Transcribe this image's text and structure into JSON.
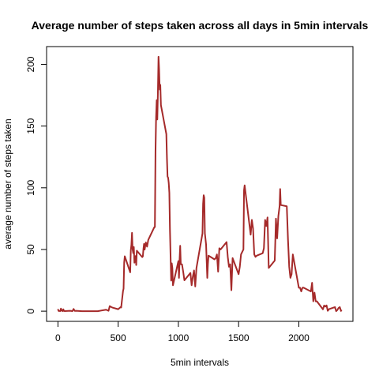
{
  "chart_data": {
    "type": "line",
    "title": "Average number of steps taken across all days in 5min intervals",
    "xlabel": "5min intervals",
    "ylabel": "average number of steps taken",
    "color": "#a52a2a",
    "x": [
      0,
      5,
      10,
      15,
      20,
      25,
      30,
      35,
      40,
      45,
      50,
      55,
      100,
      110,
      120,
      130,
      140,
      150,
      200,
      230,
      300,
      330,
      400,
      420,
      430,
      440,
      450,
      500,
      520,
      525,
      540,
      545,
      550,
      555,
      600,
      605,
      610,
      615,
      620,
      625,
      630,
      635,
      640,
      645,
      650,
      655,
      700,
      705,
      710,
      715,
      720,
      730,
      740,
      750,
      800,
      805,
      810,
      815,
      820,
      825,
      830,
      835,
      840,
      845,
      850,
      855,
      900,
      905,
      910,
      915,
      920,
      925,
      930,
      935,
      940,
      945,
      950,
      955,
      1000,
      1005,
      1010,
      1015,
      1020,
      1030,
      1040,
      1050,
      1100,
      1110,
      1120,
      1130,
      1140,
      1150,
      1200,
      1205,
      1210,
      1215,
      1220,
      1230,
      1240,
      1245,
      1250,
      1300,
      1310,
      1320,
      1330,
      1340,
      1350,
      1400,
      1410,
      1420,
      1430,
      1440,
      1450,
      1500,
      1510,
      1520,
      1530,
      1540,
      1545,
      1550,
      1600,
      1610,
      1620,
      1630,
      1640,
      1650,
      1700,
      1710,
      1720,
      1730,
      1740,
      1745,
      1750,
      1800,
      1810,
      1820,
      1830,
      1840,
      1845,
      1850,
      1900,
      1910,
      1920,
      1930,
      1940,
      1950,
      2000,
      2010,
      2020,
      2030,
      2040,
      2100,
      2110,
      2120,
      2130,
      2140,
      2150,
      2200,
      2210,
      2220,
      2230,
      2240,
      2250,
      2300,
      2310,
      2320,
      2330,
      2340,
      2350,
      2355
    ],
    "values": [
      1.7,
      0.3,
      0.1,
      0.2,
      0.1,
      2.1,
      0.5,
      0.9,
      0,
      1.5,
      0.3,
      0.1,
      0.3,
      0.2,
      0,
      1.8,
      0.2,
      0.3,
      0,
      0,
      0,
      0,
      1.2,
      0.3,
      4.1,
      3.5,
      3,
      1.6,
      3.3,
      3,
      16,
      18.3,
      39.5,
      44.5,
      31.5,
      49.3,
      53.8,
      63.5,
      50,
      47,
      52,
      39.3,
      44,
      44.7,
      37.4,
      49,
      43.8,
      44.4,
      50.5,
      54.5,
      49.9,
      55.7,
      52.3,
      57.8,
      68,
      68.2,
      129.4,
      157.5,
      171,
      155.4,
      177.3,
      206.2,
      195.9,
      179.6,
      183.4,
      167,
      143.5,
      124,
      109.1,
      108.1,
      103.7,
      95.9,
      66.2,
      45.2,
      24.8,
      38.8,
      35,
      21,
      40.6,
      27,
      42,
      53,
      38,
      38,
      32,
      25,
      31,
      21,
      28,
      33,
      20,
      35,
      63,
      87,
      94,
      92,
      63,
      54,
      27,
      38,
      45,
      42,
      43,
      46,
      32,
      51,
      50,
      56,
      44,
      36,
      38,
      17,
      43,
      30,
      36,
      46,
      48,
      50,
      98,
      102,
      62,
      74,
      67,
      46,
      44,
      45,
      47,
      51,
      74,
      69,
      76,
      56,
      35,
      41,
      75,
      59,
      77,
      85,
      99,
      86,
      85,
      58,
      36,
      27,
      30,
      46,
      19,
      19,
      16,
      19,
      19,
      16,
      23,
      8,
      15,
      8,
      8,
      1.5,
      4.6,
      3.7,
      4.7,
      0.3,
      1.6,
      3.3,
      0,
      1,
      2.6,
      3.3,
      0.2,
      1.1
    ],
    "xlim": [
      -94.2,
      2449.2
    ],
    "ylim": [
      -8.25,
      214.42
    ],
    "xticks": [
      0,
      500,
      1000,
      1500,
      2000
    ],
    "yticks": [
      0,
      50,
      100,
      150,
      200
    ]
  }
}
